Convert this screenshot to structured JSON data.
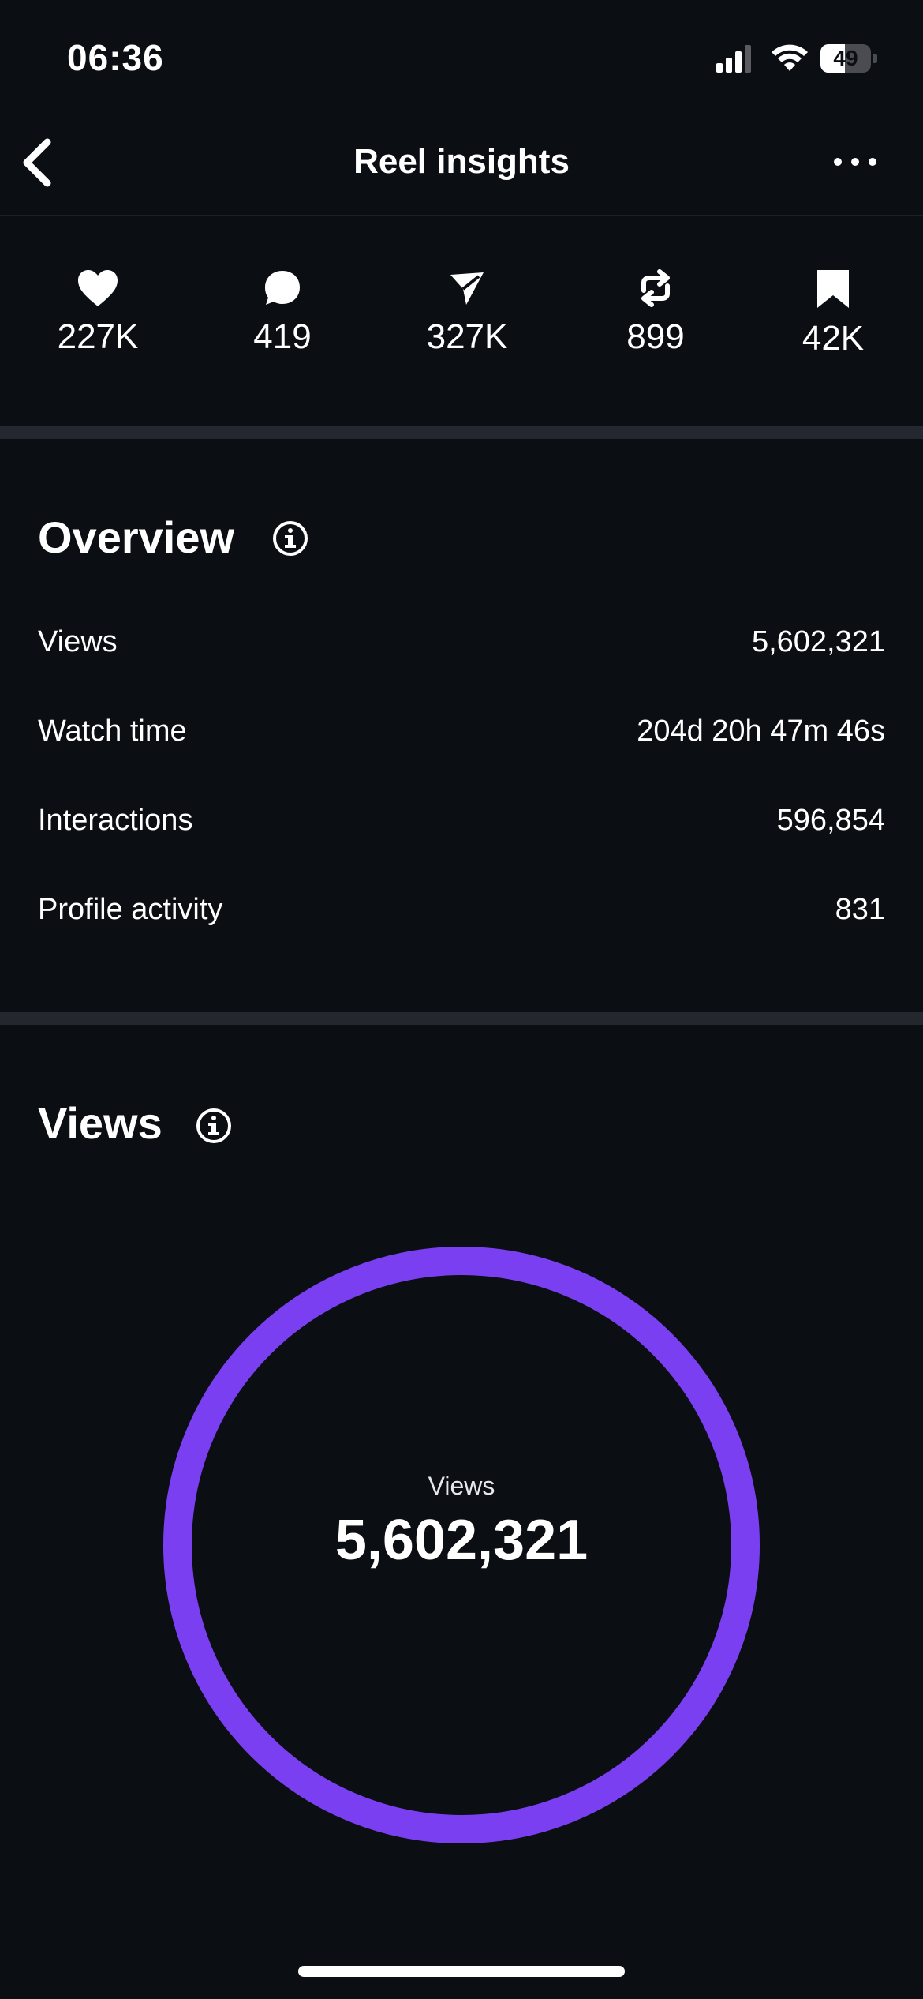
{
  "status_bar": {
    "time": "06:36",
    "battery": "49",
    "battery_level": 0.49
  },
  "header": {
    "title": "Reel insights"
  },
  "metrics": [
    {
      "icon": "heart-icon",
      "value": "227K"
    },
    {
      "icon": "comment-icon",
      "value": "419"
    },
    {
      "icon": "share-icon",
      "value": "327K"
    },
    {
      "icon": "repost-icon",
      "value": "899"
    },
    {
      "icon": "bookmark-icon",
      "value": "42K"
    }
  ],
  "overview": {
    "title": "Overview",
    "rows": [
      {
        "label": "Views",
        "value": "5,602,321"
      },
      {
        "label": "Watch time",
        "value": "204d 20h 47m 46s"
      },
      {
        "label": "Interactions",
        "value": "596,854"
      },
      {
        "label": "Profile activity",
        "value": "831"
      }
    ]
  },
  "views_section": {
    "title": "Views",
    "ring_label": "Views",
    "ring_value": "5,602,321",
    "ring_fill": 1.0
  },
  "colors": {
    "background": "#0b0e13",
    "accent": "#7b3ff2",
    "separator": "#24272d",
    "text": "#ffffff"
  }
}
